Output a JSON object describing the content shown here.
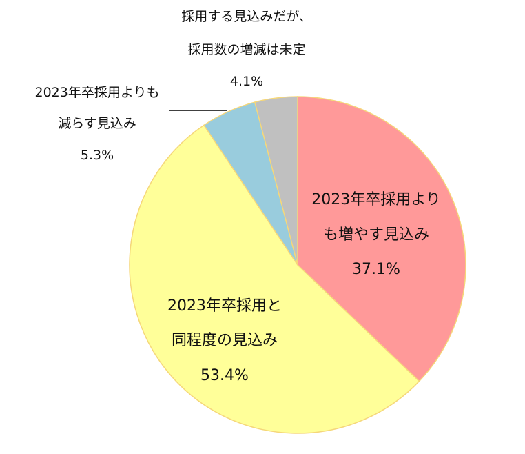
{
  "chart_data": {
    "type": "pie",
    "start_angle_deg": 0,
    "direction": "clockwise",
    "slices": [
      {
        "label_lines": [
          "2023年卒採用より",
          "も増やす見込み"
        ],
        "value": 37.1,
        "value_text": "37.1%",
        "color": "#FF9999"
      },
      {
        "label_lines": [
          "2023年卒採用と",
          "同程度の見込み"
        ],
        "value": 53.4,
        "value_text": "53.4%",
        "color": "#FFFF99"
      },
      {
        "label_lines": [
          "2023年卒採用よりも",
          "減らす見込み"
        ],
        "value": 5.3,
        "value_text": "5.3%",
        "color": "#99CCDD"
      },
      {
        "label_lines": [
          "採用する見込みだが、",
          "採用数の増減は未定"
        ],
        "value": 4.1,
        "value_text": "4.1%",
        "color": "#C0C0C0"
      }
    ],
    "slice_border_color": "#F5D77A"
  }
}
